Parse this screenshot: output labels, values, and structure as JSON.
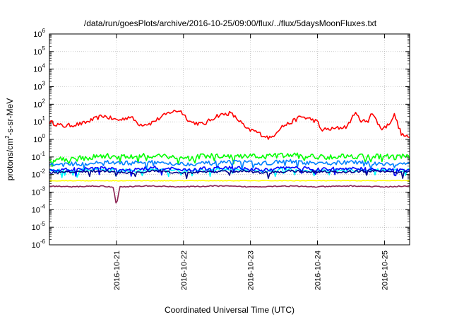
{
  "chart_data": {
    "type": "line",
    "title": "/data/run/goesPlots/archive/2016-10-25/09:00/flux/../flux/5daysMoonFluxes.txt",
    "xlabel": "Coordinated Universal Time (UTC)",
    "ylabel_parts": [
      "protons/cm",
      "2",
      "-s-sr-MeV"
    ],
    "yscale": "log",
    "ylim_exponents": [
      -6,
      6
    ],
    "y_ticks": [
      {
        "base": "10",
        "exp": "-6"
      },
      {
        "base": "10",
        "exp": "-5"
      },
      {
        "base": "10",
        "exp": "-4"
      },
      {
        "base": "10",
        "exp": "-3"
      },
      {
        "base": "10",
        "exp": "-2"
      },
      {
        "base": "10",
        "exp": "-1"
      },
      {
        "base": "10",
        "exp": "0"
      },
      {
        "base": "10",
        "exp": "1"
      },
      {
        "base": "10",
        "exp": "2"
      },
      {
        "base": "10",
        "exp": "3"
      },
      {
        "base": "10",
        "exp": "4"
      },
      {
        "base": "10",
        "exp": "5"
      },
      {
        "base": "10",
        "exp": "6"
      }
    ],
    "xlim": [
      "2016-10-20T00:00",
      "2016-10-25T09:00"
    ],
    "x_ticks": [
      "2016-10-21",
      "2016-10-22",
      "2016-10-23",
      "2016-10-24",
      "2016-10-25"
    ],
    "grid": true,
    "series": [
      {
        "color": "#ff0000",
        "log10_points": [
          [
            0.0,
            1.0
          ],
          [
            0.2,
            0.75
          ],
          [
            0.5,
            0.9
          ],
          [
            0.8,
            1.35
          ],
          [
            0.95,
            1.15
          ],
          [
            1.05,
            1.1
          ],
          [
            1.2,
            1.3
          ],
          [
            1.35,
            0.85
          ],
          [
            1.5,
            0.9
          ],
          [
            1.8,
            1.55
          ],
          [
            1.95,
            1.65
          ],
          [
            2.1,
            1.0
          ],
          [
            2.3,
            0.85
          ],
          [
            2.5,
            1.35
          ],
          [
            2.7,
            1.5
          ],
          [
            2.85,
            1.0
          ],
          [
            2.95,
            0.55
          ],
          [
            3.05,
            0.5
          ],
          [
            3.15,
            0.3
          ],
          [
            3.3,
            0.05
          ],
          [
            3.45,
            0.7
          ],
          [
            3.6,
            0.95
          ],
          [
            3.75,
            1.3
          ],
          [
            3.9,
            1.15
          ],
          [
            4.0,
            1.0
          ],
          [
            4.05,
            0.55
          ],
          [
            4.25,
            0.6
          ],
          [
            4.45,
            0.75
          ],
          [
            4.55,
            1.5
          ],
          [
            4.65,
            1.1
          ],
          [
            4.75,
            0.95
          ],
          [
            4.8,
            1.6
          ],
          [
            4.95,
            0.6
          ],
          [
            5.05,
            0.8
          ],
          [
            5.15,
            1.4
          ],
          [
            5.25,
            0.3
          ],
          [
            5.35,
            0.1
          ]
        ]
      },
      {
        "color": "#00ff00",
        "log10_points": [
          [
            0.0,
            -1.1
          ],
          [
            0.4,
            -1.1
          ],
          [
            0.8,
            -0.95
          ],
          [
            1.2,
            -1.0
          ],
          [
            1.6,
            -0.9
          ],
          [
            2.0,
            -1.05
          ],
          [
            2.4,
            -0.95
          ],
          [
            2.8,
            -1.0
          ],
          [
            3.2,
            -0.95
          ],
          [
            3.6,
            -0.9
          ],
          [
            4.0,
            -1.0
          ],
          [
            4.4,
            -0.95
          ],
          [
            4.8,
            -0.95
          ],
          [
            5.2,
            -1.0
          ],
          [
            5.38,
            -0.95
          ]
        ]
      },
      {
        "color": "#0080ff",
        "log10_points": [
          [
            0.0,
            -1.45
          ],
          [
            0.4,
            -1.4
          ],
          [
            0.8,
            -1.3
          ],
          [
            1.2,
            -1.35
          ],
          [
            1.6,
            -1.3
          ],
          [
            2.0,
            -1.4
          ],
          [
            2.4,
            -1.35
          ],
          [
            2.8,
            -1.3
          ],
          [
            3.2,
            -1.35
          ],
          [
            3.6,
            -1.25
          ],
          [
            4.0,
            -1.4
          ],
          [
            4.4,
            -1.3
          ],
          [
            4.8,
            -1.35
          ],
          [
            5.2,
            -1.4
          ],
          [
            5.38,
            -1.35
          ]
        ]
      },
      {
        "color": "#00ffff",
        "log10_points": [
          [
            0.0,
            -1.8
          ],
          [
            0.4,
            -1.75
          ],
          [
            0.8,
            -1.7
          ],
          [
            1.2,
            -1.8
          ],
          [
            1.6,
            -1.7
          ],
          [
            2.0,
            -1.8
          ],
          [
            2.4,
            -1.75
          ],
          [
            2.8,
            -1.7
          ],
          [
            3.2,
            -1.8
          ],
          [
            3.6,
            -1.7
          ],
          [
            4.0,
            -1.8
          ],
          [
            4.4,
            -1.75
          ],
          [
            4.8,
            -1.75
          ],
          [
            5.2,
            -1.8
          ],
          [
            5.38,
            -1.75
          ]
        ]
      },
      {
        "color": "#0000ff",
        "log10_points": [
          [
            0.0,
            -1.75
          ],
          [
            0.4,
            -1.7
          ],
          [
            0.8,
            -1.65
          ],
          [
            1.2,
            -1.75
          ],
          [
            1.6,
            -1.6
          ],
          [
            2.0,
            -1.75
          ],
          [
            2.4,
            -1.65
          ],
          [
            2.8,
            -1.6
          ],
          [
            3.2,
            -1.75
          ],
          [
            3.6,
            -1.6
          ],
          [
            4.0,
            -1.7
          ],
          [
            4.4,
            -1.65
          ],
          [
            4.8,
            -1.7
          ],
          [
            5.2,
            -1.75
          ],
          [
            5.38,
            -1.7
          ]
        ]
      },
      {
        "color": "#00008b",
        "log10_points": [
          [
            0.0,
            -1.9
          ],
          [
            0.4,
            -1.85
          ],
          [
            0.8,
            -1.8
          ],
          [
            1.2,
            -1.9
          ],
          [
            1.6,
            -1.8
          ],
          [
            2.0,
            -1.9
          ],
          [
            2.4,
            -1.85
          ],
          [
            2.8,
            -1.8
          ],
          [
            3.2,
            -1.9
          ],
          [
            3.6,
            -1.8
          ],
          [
            4.0,
            -1.85
          ],
          [
            4.4,
            -1.85
          ],
          [
            4.8,
            -1.8
          ],
          [
            5.2,
            -1.9
          ],
          [
            5.38,
            -1.85
          ]
        ]
      },
      {
        "color": "#ffff00",
        "log10_points": [
          [
            0.0,
            -2.35
          ],
          [
            0.8,
            -2.35
          ],
          [
            1.6,
            -2.35
          ],
          [
            2.4,
            -2.35
          ],
          [
            3.2,
            -2.35
          ],
          [
            4.0,
            -2.35
          ],
          [
            4.8,
            -2.35
          ],
          [
            5.38,
            -2.35
          ]
        ]
      },
      {
        "color": "#8b2252",
        "log10_points": [
          [
            0.0,
            -2.65
          ],
          [
            0.3,
            -2.7
          ],
          [
            0.7,
            -2.65
          ],
          [
            0.95,
            -2.7
          ],
          [
            1.0,
            -3.75
          ],
          [
            1.05,
            -2.7
          ],
          [
            1.5,
            -2.65
          ],
          [
            2.0,
            -2.7
          ],
          [
            2.5,
            -2.65
          ],
          [
            3.0,
            -2.7
          ],
          [
            3.5,
            -2.65
          ],
          [
            4.0,
            -2.7
          ],
          [
            4.5,
            -2.65
          ],
          [
            5.0,
            -2.7
          ],
          [
            5.38,
            -2.65
          ]
        ]
      }
    ]
  }
}
